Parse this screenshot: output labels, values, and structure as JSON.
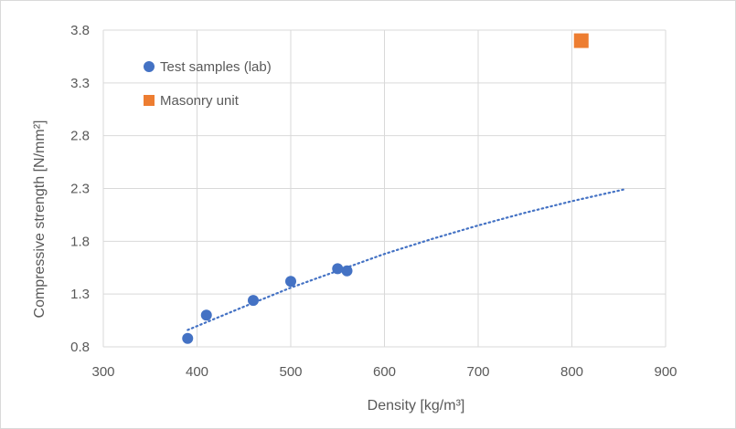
{
  "chart_data": {
    "type": "scatter",
    "xlabel": "Density [kg/m³]",
    "ylabel": "Compressive strength [N/mm²]",
    "xlim": [
      300,
      900
    ],
    "ylim": [
      0.8,
      3.8
    ],
    "x_ticks": [
      "300",
      "400",
      "500",
      "600",
      "700",
      "800",
      "900"
    ],
    "y_ticks": [
      "0.8",
      "1.3",
      "1.8",
      "2.3",
      "2.8",
      "3.3",
      "3.8"
    ],
    "grid": true,
    "legend_position": "top-left",
    "series": [
      {
        "name": "Test samples  (lab)",
        "marker": "circle",
        "color": "#4472c4",
        "points": [
          {
            "x": 390,
            "y": 0.88
          },
          {
            "x": 410,
            "y": 1.1
          },
          {
            "x": 460,
            "y": 1.24
          },
          {
            "x": 500,
            "y": 1.42
          },
          {
            "x": 550,
            "y": 1.54
          },
          {
            "x": 560,
            "y": 1.52
          }
        ]
      },
      {
        "name": "Masonry unit",
        "marker": "square",
        "color": "#ed7d31",
        "points": [
          {
            "x": 810,
            "y": 3.7
          }
        ]
      }
    ],
    "trendline": {
      "series": "Test samples  (lab)",
      "style": "dotted",
      "color": "#4472c4",
      "points": [
        {
          "x": 390,
          "y": 0.96
        },
        {
          "x": 450,
          "y": 1.18
        },
        {
          "x": 500,
          "y": 1.36
        },
        {
          "x": 550,
          "y": 1.52
        },
        {
          "x": 600,
          "y": 1.68
        },
        {
          "x": 650,
          "y": 1.82
        },
        {
          "x": 700,
          "y": 1.95
        },
        {
          "x": 750,
          "y": 2.07
        },
        {
          "x": 800,
          "y": 2.18
        },
        {
          "x": 855,
          "y": 2.29
        }
      ]
    }
  }
}
